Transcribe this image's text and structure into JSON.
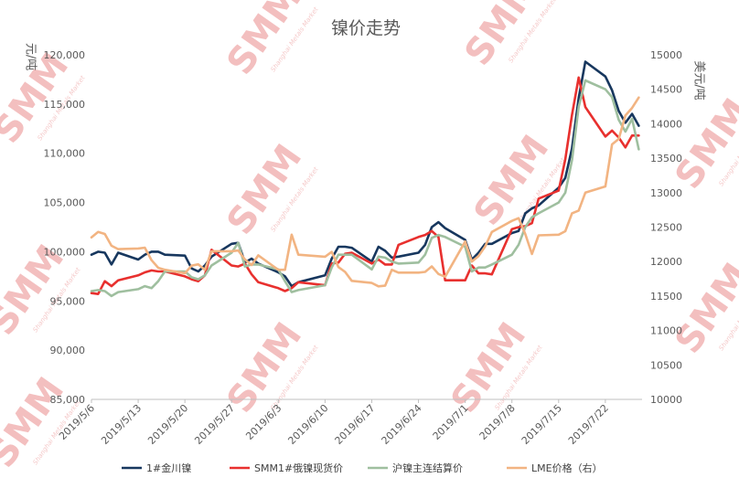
{
  "watermark": {
    "logo_text": "SMM",
    "sub_text": "Shanghai Metals Market"
  },
  "chart_data": {
    "type": "line",
    "title": "镍价走势",
    "ylabel_left": "元/吨",
    "ylabel_right": "美元/吨",
    "ylim_left": [
      85000,
      120000
    ],
    "ylim_right": [
      10000,
      15000
    ],
    "yticks_left": [
      "85,000",
      "90,000",
      "95,000",
      "100,000",
      "105,000",
      "110,000",
      "115,000",
      "120,000"
    ],
    "yticks_right": [
      "10000",
      "10500",
      "11000",
      "11500",
      "12000",
      "12500",
      "13000",
      "13500",
      "14000",
      "14500",
      "15000"
    ],
    "xticks": [
      "2019/5/6",
      "2019/5/13",
      "2019/5/20",
      "2019/5/27",
      "2019/6/3",
      "2019/6/10",
      "2019/6/17",
      "2019/6/24",
      "2019/7/1",
      "2019/7/8",
      "2019/7/15",
      "2019/7/22"
    ],
    "legend_position": "bottom",
    "series": [
      {
        "name": "1#金川镍",
        "axis": "left",
        "color": "#17375e",
        "points": [
          [
            "2019/5/6",
            99700
          ],
          [
            "2019/5/7",
            100000
          ],
          [
            "2019/5/8",
            99900
          ],
          [
            "2019/5/9",
            98700
          ],
          [
            "2019/5/10",
            99900
          ],
          [
            "2019/5/13",
            99200
          ],
          [
            "2019/5/14",
            99700
          ],
          [
            "2019/5/15",
            100000
          ],
          [
            "2019/5/16",
            100000
          ],
          [
            "2019/5/17",
            99700
          ],
          [
            "2019/5/20",
            99600
          ],
          [
            "2019/5/21",
            98300
          ],
          [
            "2019/5/22",
            98000
          ],
          [
            "2019/5/23",
            98600
          ],
          [
            "2019/5/24",
            99500
          ],
          [
            "2019/5/27",
            100800
          ],
          [
            "2019/5/28",
            100900
          ],
          [
            "2019/5/29",
            98900
          ],
          [
            "2019/5/30",
            99300
          ],
          [
            "2019/5/31",
            98800
          ],
          [
            "2019/6/3",
            97900
          ],
          [
            "2019/6/4",
            97500
          ],
          [
            "2019/6/5",
            96500
          ],
          [
            "2019/6/6",
            96900
          ],
          [
            "2019/6/10",
            97600
          ],
          [
            "2019/6/11",
            99300
          ],
          [
            "2019/6/12",
            100500
          ],
          [
            "2019/6/13",
            100500
          ],
          [
            "2019/6/14",
            100400
          ],
          [
            "2019/6/17",
            99000
          ],
          [
            "2019/6/18",
            100500
          ],
          [
            "2019/6/19",
            100100
          ],
          [
            "2019/6/20",
            99400
          ],
          [
            "2019/6/21",
            99500
          ],
          [
            "2019/6/24",
            99900
          ],
          [
            "2019/6/25",
            100700
          ],
          [
            "2019/6/26",
            102500
          ],
          [
            "2019/6/27",
            103000
          ],
          [
            "2019/6/28",
            102400
          ],
          [
            "2019/7/1",
            101200
          ],
          [
            "2019/7/2",
            99200
          ],
          [
            "2019/7/3",
            99900
          ],
          [
            "2019/7/4",
            100800
          ],
          [
            "2019/7/5",
            100800
          ],
          [
            "2019/7/8",
            101900
          ],
          [
            "2019/7/9",
            102100
          ],
          [
            "2019/7/10",
            103900
          ],
          [
            "2019/7/11",
            104400
          ],
          [
            "2019/7/12",
            104700
          ],
          [
            "2019/7/15",
            106500
          ],
          [
            "2019/7/16",
            107500
          ],
          [
            "2019/7/17",
            110500
          ],
          [
            "2019/7/18",
            115600
          ],
          [
            "2019/7/19",
            119300
          ],
          [
            "2019/7/22",
            117800
          ],
          [
            "2019/7/23",
            116400
          ],
          [
            "2019/7/24",
            114300
          ],
          [
            "2019/7/25",
            113100
          ],
          [
            "2019/7/26",
            114000
          ],
          [
            "2019/7/27",
            112800
          ]
        ]
      },
      {
        "name": "SMM1#俄镍现货价",
        "axis": "left",
        "color": "#e8302e",
        "points": [
          [
            "2019/5/6",
            95800
          ],
          [
            "2019/5/7",
            95700
          ],
          [
            "2019/5/8",
            97000
          ],
          [
            "2019/5/9",
            96500
          ],
          [
            "2019/5/10",
            97100
          ],
          [
            "2019/5/13",
            97600
          ],
          [
            "2019/5/14",
            97900
          ],
          [
            "2019/5/15",
            98100
          ],
          [
            "2019/5/16",
            98000
          ],
          [
            "2019/5/17",
            98000
          ],
          [
            "2019/5/20",
            97500
          ],
          [
            "2019/5/21",
            97200
          ],
          [
            "2019/5/22",
            97000
          ],
          [
            "2019/5/23",
            97600
          ],
          [
            "2019/5/24",
            100200
          ],
          [
            "2019/5/27",
            98600
          ],
          [
            "2019/5/28",
            98500
          ],
          [
            "2019/5/29",
            98800
          ],
          [
            "2019/5/30",
            97700
          ],
          [
            "2019/5/31",
            96900
          ],
          [
            "2019/6/3",
            96300
          ],
          [
            "2019/6/4",
            96000
          ],
          [
            "2019/6/5",
            96300
          ],
          [
            "2019/6/6",
            96900
          ],
          [
            "2019/6/10",
            96600
          ],
          [
            "2019/6/11",
            98800
          ],
          [
            "2019/6/12",
            98900
          ],
          [
            "2019/6/13",
            99800
          ],
          [
            "2019/6/14",
            99900
          ],
          [
            "2019/6/17",
            98800
          ],
          [
            "2019/6/18",
            99200
          ],
          [
            "2019/6/19",
            98700
          ],
          [
            "2019/6/20",
            98700
          ],
          [
            "2019/6/21",
            100700
          ],
          [
            "2019/6/24",
            101500
          ],
          [
            "2019/6/25",
            101700
          ],
          [
            "2019/6/26",
            102100
          ],
          [
            "2019/6/27",
            101500
          ],
          [
            "2019/6/28",
            97100
          ],
          [
            "2019/7/1",
            97100
          ],
          [
            "2019/7/2",
            98600
          ],
          [
            "2019/7/3",
            97800
          ],
          [
            "2019/7/4",
            97800
          ],
          [
            "2019/7/5",
            97700
          ],
          [
            "2019/7/8",
            102300
          ],
          [
            "2019/7/9",
            102500
          ],
          [
            "2019/7/10",
            102600
          ],
          [
            "2019/7/11",
            102900
          ],
          [
            "2019/7/12",
            105400
          ],
          [
            "2019/7/15",
            106200
          ],
          [
            "2019/7/16",
            109400
          ],
          [
            "2019/7/17",
            113900
          ],
          [
            "2019/7/18",
            117700
          ],
          [
            "2019/7/19",
            114700
          ],
          [
            "2019/7/22",
            111700
          ],
          [
            "2019/7/23",
            112300
          ],
          [
            "2019/7/24",
            111600
          ],
          [
            "2019/7/25",
            110600
          ],
          [
            "2019/7/26",
            111800
          ],
          [
            "2019/7/27",
            111800
          ]
        ]
      },
      {
        "name": "沪镍主连结算价",
        "axis": "left",
        "color": "#9fbf9f",
        "points": [
          [
            "2019/5/6",
            96000
          ],
          [
            "2019/5/7",
            96100
          ],
          [
            "2019/5/8",
            96000
          ],
          [
            "2019/5/9",
            95500
          ],
          [
            "2019/5/10",
            95900
          ],
          [
            "2019/5/13",
            96200
          ],
          [
            "2019/5/14",
            96500
          ],
          [
            "2019/5/15",
            96300
          ],
          [
            "2019/5/16",
            97000
          ],
          [
            "2019/5/17",
            98000
          ],
          [
            "2019/5/20",
            98000
          ],
          [
            "2019/5/21",
            97400
          ],
          [
            "2019/5/22",
            97200
          ],
          [
            "2019/5/23",
            97600
          ],
          [
            "2019/5/24",
            98600
          ],
          [
            "2019/5/27",
            99900
          ],
          [
            "2019/5/28",
            100900
          ],
          [
            "2019/5/29",
            98500
          ],
          [
            "2019/5/30",
            98700
          ],
          [
            "2019/5/31",
            98700
          ],
          [
            "2019/6/3",
            98200
          ],
          [
            "2019/6/4",
            97000
          ],
          [
            "2019/6/5",
            95900
          ],
          [
            "2019/6/6",
            96100
          ],
          [
            "2019/6/10",
            96600
          ],
          [
            "2019/6/11",
            98400
          ],
          [
            "2019/6/12",
            99700
          ],
          [
            "2019/6/13",
            99700
          ],
          [
            "2019/6/14",
            99700
          ],
          [
            "2019/6/17",
            98200
          ],
          [
            "2019/6/18",
            99500
          ],
          [
            "2019/6/19",
            99400
          ],
          [
            "2019/6/20",
            99000
          ],
          [
            "2019/6/21",
            98800
          ],
          [
            "2019/6/24",
            98900
          ],
          [
            "2019/6/25",
            99700
          ],
          [
            "2019/6/26",
            101400
          ],
          [
            "2019/6/27",
            101700
          ],
          [
            "2019/6/28",
            101500
          ],
          [
            "2019/7/1",
            100500
          ],
          [
            "2019/7/2",
            98000
          ],
          [
            "2019/7/3",
            98400
          ],
          [
            "2019/7/4",
            98400
          ],
          [
            "2019/7/5",
            98700
          ],
          [
            "2019/7/8",
            99700
          ],
          [
            "2019/7/9",
            100700
          ],
          [
            "2019/7/10",
            102500
          ],
          [
            "2019/7/11",
            103500
          ],
          [
            "2019/7/12",
            103900
          ],
          [
            "2019/7/15",
            105000
          ],
          [
            "2019/7/16",
            106000
          ],
          [
            "2019/7/17",
            109300
          ],
          [
            "2019/7/18",
            114700
          ],
          [
            "2019/7/19",
            117400
          ],
          [
            "2019/7/22",
            116500
          ],
          [
            "2019/7/23",
            115700
          ],
          [
            "2019/7/24",
            113400
          ],
          [
            "2019/7/25",
            112200
          ],
          [
            "2019/7/26",
            113500
          ],
          [
            "2019/7/27",
            110400
          ]
        ]
      },
      {
        "name": "LME价格（右）",
        "axis": "right",
        "color": "#f2b482",
        "points": [
          [
            "2019/5/6",
            12350
          ],
          [
            "2019/5/7",
            12430
          ],
          [
            "2019/5/8",
            12400
          ],
          [
            "2019/5/9",
            12230
          ],
          [
            "2019/5/10",
            12180
          ],
          [
            "2019/5/13",
            12190
          ],
          [
            "2019/5/14",
            12200
          ],
          [
            "2019/5/15",
            12020
          ],
          [
            "2019/5/16",
            11910
          ],
          [
            "2019/5/17",
            11880
          ],
          [
            "2019/5/20",
            11830
          ],
          [
            "2019/5/21",
            11940
          ],
          [
            "2019/5/22",
            11960
          ],
          [
            "2019/5/23",
            11880
          ],
          [
            "2019/5/24",
            12150
          ],
          [
            "2019/5/27",
            12150
          ],
          [
            "2019/5/28",
            12160
          ],
          [
            "2019/5/29",
            12030
          ],
          [
            "2019/5/30",
            11950
          ],
          [
            "2019/5/31",
            12090
          ],
          [
            "2019/6/3",
            11880
          ],
          [
            "2019/6/4",
            11880
          ],
          [
            "2019/6/5",
            12390
          ],
          [
            "2019/6/6",
            12100
          ],
          [
            "2019/6/10",
            12070
          ],
          [
            "2019/6/11",
            12140
          ],
          [
            "2019/6/12",
            11920
          ],
          [
            "2019/6/13",
            11850
          ],
          [
            "2019/6/14",
            11720
          ],
          [
            "2019/6/17",
            11690
          ],
          [
            "2019/6/18",
            11640
          ],
          [
            "2019/6/19",
            11650
          ],
          [
            "2019/6/20",
            11880
          ],
          [
            "2019/6/21",
            11840
          ],
          [
            "2019/6/24",
            11840
          ],
          [
            "2019/6/25",
            11850
          ],
          [
            "2019/6/26",
            11930
          ],
          [
            "2019/6/27",
            11820
          ],
          [
            "2019/6/28",
            11780
          ],
          [
            "2019/7/1",
            12290
          ],
          [
            "2019/7/2",
            12000
          ],
          [
            "2019/7/3",
            12080
          ],
          [
            "2019/7/4",
            12220
          ],
          [
            "2019/7/5",
            12430
          ],
          [
            "2019/7/8",
            12590
          ],
          [
            "2019/7/9",
            12630
          ],
          [
            "2019/7/10",
            12400
          ],
          [
            "2019/7/11",
            12110
          ],
          [
            "2019/7/12",
            12380
          ],
          [
            "2019/7/15",
            12390
          ],
          [
            "2019/7/16",
            12440
          ],
          [
            "2019/7/17",
            12700
          ],
          [
            "2019/7/18",
            12740
          ],
          [
            "2019/7/19",
            13000
          ],
          [
            "2019/7/22",
            13090
          ],
          [
            "2019/7/23",
            13700
          ],
          [
            "2019/7/24",
            13780
          ],
          [
            "2019/7/25",
            14120
          ],
          [
            "2019/7/26",
            14230
          ],
          [
            "2019/7/27",
            14380
          ]
        ]
      }
    ]
  }
}
